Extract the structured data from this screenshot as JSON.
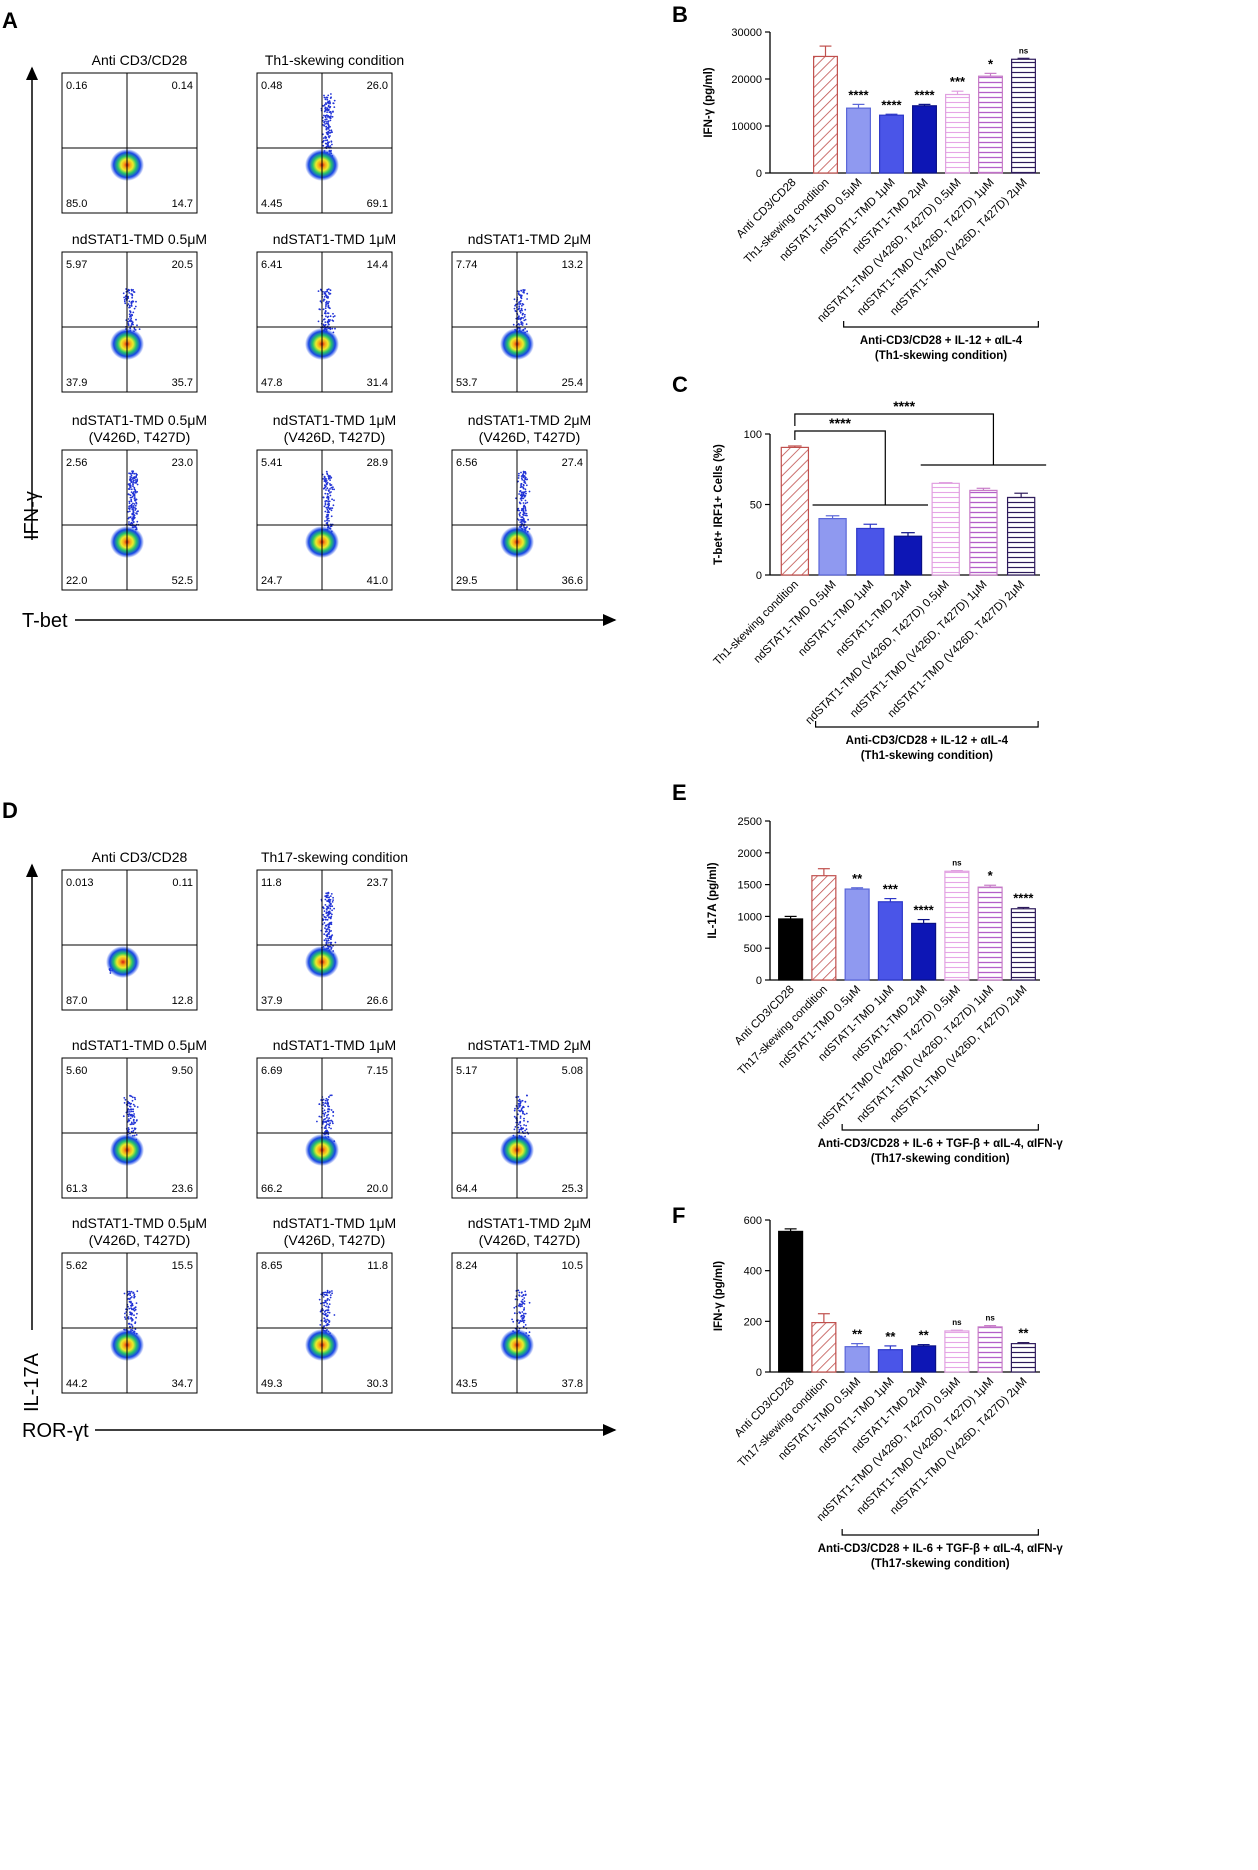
{
  "figure": {
    "panels": {
      "A": {
        "letter": "A",
        "y_axis_label": "IFN-γ",
        "x_axis_label": "T-bet",
        "plots": [
          {
            "title": [
              "Anti CD3/CD28"
            ],
            "q": [
              "0.16",
              "0.14",
              "85.0",
              "14.7"
            ],
            "cloud": "small"
          },
          {
            "title": [
              "Th1-skewing condition"
            ],
            "q": [
              "0.48",
              "26.0",
              "4.45",
              "69.1"
            ],
            "cloud": "high"
          },
          {
            "title": [
              "ndSTAT1-TMD 0.5μM"
            ],
            "q": [
              "5.97",
              "20.5",
              "37.9",
              "35.7"
            ],
            "cloud": "mid"
          },
          {
            "title": [
              "ndSTAT1-TMD 1μM"
            ],
            "q": [
              "6.41",
              "14.4",
              "47.8",
              "31.4"
            ],
            "cloud": "mid"
          },
          {
            "title": [
              "ndSTAT1-TMD 2μM"
            ],
            "q": [
              "7.74",
              "13.2",
              "53.7",
              "25.4"
            ],
            "cloud": "mid"
          },
          {
            "title": [
              "ndSTAT1-TMD 0.5μM",
              "(V426D, T427D)"
            ],
            "q": [
              "2.56",
              "23.0",
              "22.0",
              "52.5"
            ],
            "cloud": "high"
          },
          {
            "title": [
              "ndSTAT1-TMD 1μM",
              "(V426D, T427D)"
            ],
            "q": [
              "5.41",
              "28.9",
              "24.7",
              "41.0"
            ],
            "cloud": "high"
          },
          {
            "title": [
              "ndSTAT1-TMD 2μM",
              "(V426D, T427D)"
            ],
            "q": [
              "6.56",
              "27.4",
              "29.5",
              "36.6"
            ],
            "cloud": "high"
          }
        ]
      },
      "D": {
        "letter": "D",
        "y_axis_label": "IL-17A",
        "x_axis_label": "ROR-γt",
        "plots": [
          {
            "title": [
              "Anti CD3/CD28"
            ],
            "q": [
              "0.013",
              "0.11",
              "87.0",
              "12.8"
            ],
            "cloud": "diag"
          },
          {
            "title": [
              "Th17-skewing condition"
            ],
            "q": [
              "11.8",
              "23.7",
              "37.9",
              "26.6"
            ],
            "cloud": "high"
          },
          {
            "title": [
              "ndSTAT1-TMD 0.5μM"
            ],
            "q": [
              "5.60",
              "9.50",
              "61.3",
              "23.6"
            ],
            "cloud": "mid"
          },
          {
            "title": [
              "ndSTAT1-TMD 1μM"
            ],
            "q": [
              "6.69",
              "7.15",
              "66.2",
              "20.0"
            ],
            "cloud": "mid"
          },
          {
            "title": [
              "ndSTAT1-TMD 2μM"
            ],
            "q": [
              "5.17",
              "5.08",
              "64.4",
              "25.3"
            ],
            "cloud": "mid"
          },
          {
            "title": [
              "ndSTAT1-TMD 0.5μM",
              "(V426D, T427D)"
            ],
            "q": [
              "5.62",
              "15.5",
              "44.2",
              "34.7"
            ],
            "cloud": "mid"
          },
          {
            "title": [
              "ndSTAT1-TMD 1μM",
              "(V426D, T427D)"
            ],
            "q": [
              "8.65",
              "11.8",
              "49.3",
              "30.3"
            ],
            "cloud": "mid"
          },
          {
            "title": [
              "ndSTAT1-TMD 2μM",
              "(V426D, T427D)"
            ],
            "q": [
              "8.24",
              "10.5",
              "43.5",
              "37.8"
            ],
            "cloud": "mid"
          }
        ]
      }
    },
    "palette": {
      "red": "#c0504d",
      "pink": "#c77cc7",
      "blue_light": "#8f99f0",
      "blue_mid": "#4a55e8",
      "blue_dark": "#0d16b5",
      "black": "#000000"
    }
  },
  "chart_data": [
    {
      "panel": "B",
      "type": "bar",
      "ylabel": "IFN-γ (pg/ml)",
      "ylim": [
        0,
        30000
      ],
      "yticks": [
        "0",
        "10000",
        "20000",
        "30000"
      ],
      "categories": [
        "Anti CD3/CD28",
        "Th1-skewing condition",
        "ndSTAT1-TMD 0.5μM",
        "ndSTAT1-TMD 1μM",
        "ndSTAT1-TMD 2μM",
        "ndSTAT1-TMD (V426D, T427D) 0.5μM",
        "ndSTAT1-TMD (V426D, T427D) 1μM",
        "ndSTAT1-TMD (V426D, T427D) 2μM"
      ],
      "values": [
        0,
        24800,
        13800,
        12300,
        14300,
        16700,
        20600,
        24200
      ],
      "errors": [
        0,
        2200,
        800,
        200,
        300,
        700,
        600,
        200
      ],
      "styles": [
        "black",
        "diag-red",
        "blue_light",
        "blue_mid",
        "blue_dark",
        "hline-pink",
        "hline-pink2",
        "hline-dark"
      ],
      "sig": [
        "",
        "",
        "****",
        "****",
        "****",
        "***",
        "*",
        "ns"
      ],
      "bracket_from": 2,
      "bracket_to": 7,
      "bracket_label": [
        "Anti-CD3/CD28 + IL-12 + αIL-4",
        "(Th1-skewing condition)"
      ]
    },
    {
      "panel": "C",
      "type": "bar",
      "ylabel": "T-bet+ IRF1+ Cells (%)",
      "ylim": [
        0,
        100
      ],
      "yticks": [
        "0",
        "50",
        "100"
      ],
      "categories": [
        "Th1-skewing condition",
        "ndSTAT1-TMD 0.5μM",
        "ndSTAT1-TMD 1μM",
        "ndSTAT1-TMD 2μM",
        "ndSTAT1-TMD (V426D, T427D) 0.5μM",
        "ndSTAT1-TMD (V426D, T427D) 1μM",
        "ndSTAT1-TMD (V426D, T427D) 2μM"
      ],
      "values": [
        90.5,
        40,
        33,
        27.5,
        65,
        60,
        55
      ],
      "errors": [
        1,
        2,
        3,
        2.5,
        0.5,
        1.5,
        3
      ],
      "styles": [
        "diag-red",
        "blue_light",
        "blue_mid",
        "blue_dark",
        "hline-pink",
        "hline-pink2",
        "hline-dark"
      ],
      "sig_groups": [
        {
          "label": "****",
          "from": 1,
          "to": 3
        },
        {
          "label": "****",
          "from": 4,
          "to": 6
        }
      ],
      "bracket_from": 1,
      "bracket_to": 6,
      "bracket_label": [
        "Anti-CD3/CD28 + IL-12 + αIL-4",
        "(Th1-skewing condition)"
      ]
    },
    {
      "panel": "E",
      "type": "bar",
      "ylabel": "IL-17A (pg/ml)",
      "ylim": [
        0,
        2500
      ],
      "yticks": [
        "0",
        "500",
        "1000",
        "1500",
        "2000",
        "2500"
      ],
      "categories": [
        "Anti CD3/CD28",
        "Th17-skewing condition",
        "ndSTAT1-TMD 0.5μM",
        "ndSTAT1-TMD 1μM",
        "ndSTAT1-TMD 2μM",
        "ndSTAT1-TMD (V426D, T427D) 0.5μM",
        "ndSTAT1-TMD (V426D, T427D) 1μM",
        "ndSTAT1-TMD (V426D, T427D) 2μM"
      ],
      "values": [
        960,
        1640,
        1430,
        1230,
        890,
        1710,
        1460,
        1120
      ],
      "errors": [
        40,
        110,
        20,
        50,
        60,
        10,
        30,
        20
      ],
      "styles": [
        "black",
        "diag-red",
        "blue_light",
        "blue_mid",
        "blue_dark",
        "hline-pink",
        "hline-pink2",
        "hline-dark"
      ],
      "sig": [
        "",
        "",
        "**",
        "***",
        "****",
        "ns",
        "*",
        "****"
      ],
      "bracket_from": 2,
      "bracket_to": 7,
      "bracket_label": [
        "Anti-CD3/CD28 + IL-6 + TGF-β + αIL-4, αIFN-γ",
        "(Th17-skewing condition)"
      ]
    },
    {
      "panel": "F",
      "type": "bar",
      "ylabel": "IFN-γ (pg/ml)",
      "ylim": [
        0,
        600
      ],
      "yticks": [
        "0",
        "200",
        "400",
        "600"
      ],
      "categories": [
        "Anti CD3/CD28",
        "Th17-skewing condition",
        "ndSTAT1-TMD 0.5μM",
        "ndSTAT1-TMD 1μM",
        "ndSTAT1-TMD 2μM",
        "ndSTAT1-TMD (V426D, T427D) 0.5μM",
        "ndSTAT1-TMD (V426D, T427D) 1μM",
        "ndSTAT1-TMD (V426D, T427D) 2μM"
      ],
      "values": [
        555,
        195,
        100,
        88,
        103,
        162,
        178,
        112
      ],
      "errors": [
        10,
        35,
        12,
        15,
        5,
        3,
        5,
        4
      ],
      "styles": [
        "black",
        "diag-red",
        "blue_light",
        "blue_mid",
        "blue_dark",
        "hline-pink",
        "hline-pink2",
        "hline-dark"
      ],
      "sig": [
        "",
        "",
        "**",
        "**",
        "**",
        "ns",
        "ns",
        "**"
      ],
      "bracket_from": 2,
      "bracket_to": 7,
      "bracket_label": [
        "Anti-CD3/CD28 + IL-6 + TGF-β + αIL-4, αIFN-γ",
        "(Th17-skewing condition)"
      ]
    }
  ]
}
